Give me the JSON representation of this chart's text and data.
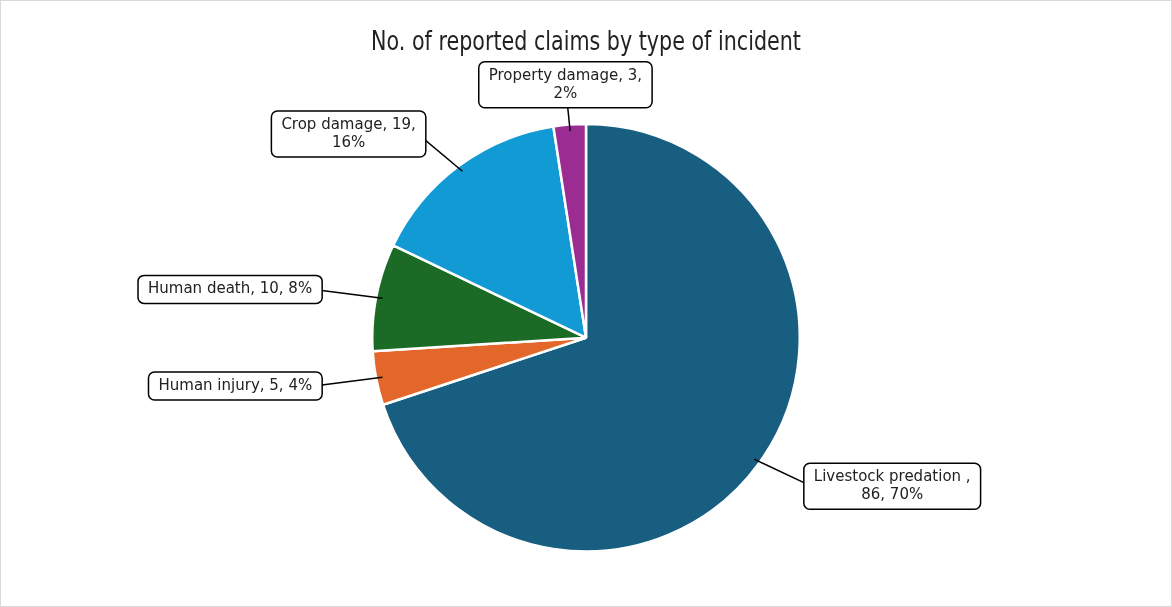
{
  "chart_data": {
    "type": "pie",
    "title": "No. of reported claims by type of incident",
    "categories": [
      "Livestock predation ",
      "Human injury",
      "Human death",
      "Crop damage",
      "Property damage"
    ],
    "values": [
      86,
      5,
      10,
      19,
      3
    ],
    "colors": [
      "#175e80",
      "#e3672a",
      "#1b6b26",
      "#119ad3",
      "#9b2c91"
    ],
    "value_labels": [
      ", 86, 70%",
      ", 5, 4%",
      ", 10, 8%",
      ", 19, 16%",
      ", 3, 2%"
    ],
    "legend": false
  }
}
